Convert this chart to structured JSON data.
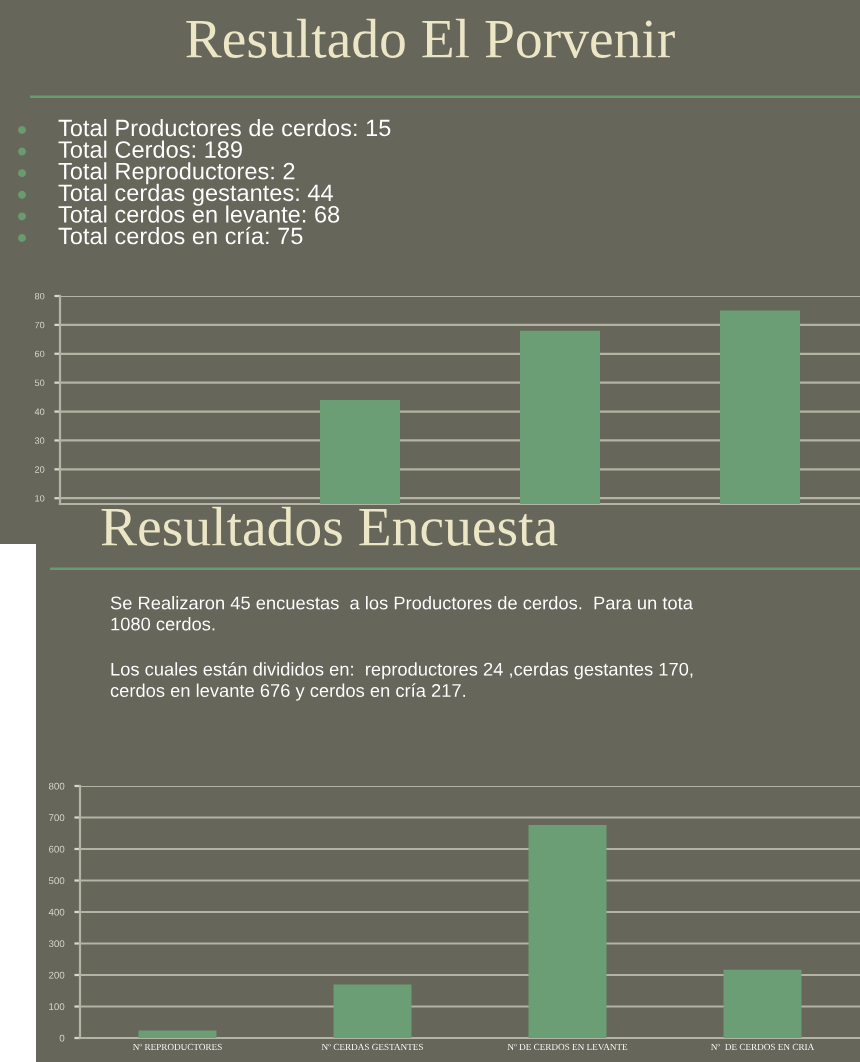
{
  "chart_data": [
    {
      "type": "bar",
      "title": "Resultado El Porvenir",
      "annotations": [
        "Total Productores de cerdos: 15",
        "Total Cerdos: 189",
        "Total Reproductores: 2",
        "Total cerdas gestantes: 44",
        "Total cerdos en levante: 68",
        "Total cerdos en cría: 75"
      ],
      "categories": [
        null,
        null,
        null,
        null
      ],
      "values": [
        null,
        44,
        68,
        75
      ],
      "color": "#6b9e74",
      "ylim": [
        8,
        80
      ],
      "yticks": [
        10,
        20,
        30,
        40,
        50,
        60,
        70,
        80
      ],
      "grid": "y"
    },
    {
      "type": "bar",
      "title": "Resultados Encuesta",
      "annotations": [
        "Se Realizaron 45 encuestas  a los Productores de cerdos.  Para un tota\n1080 cerdos.",
        "Los cuales están divididos en:  reproductores 24 ,cerdas gestantes 170,\ncerdos en levante 676 y cerdos en cría 217."
      ],
      "categories": [
        "Nº REPRODUCTORES",
        "Nº CERDAS GESTANTES",
        "Nº DE CERDOS EN LEVANTE",
        "Nº  DE CERDOS EN CRIA"
      ],
      "values": [
        24,
        170,
        676,
        217
      ],
      "color": "#6b9e74",
      "ylim": [
        0,
        800
      ],
      "yticks": [
        0,
        100,
        200,
        300,
        400,
        500,
        600,
        700,
        800
      ],
      "grid": "y"
    }
  ]
}
